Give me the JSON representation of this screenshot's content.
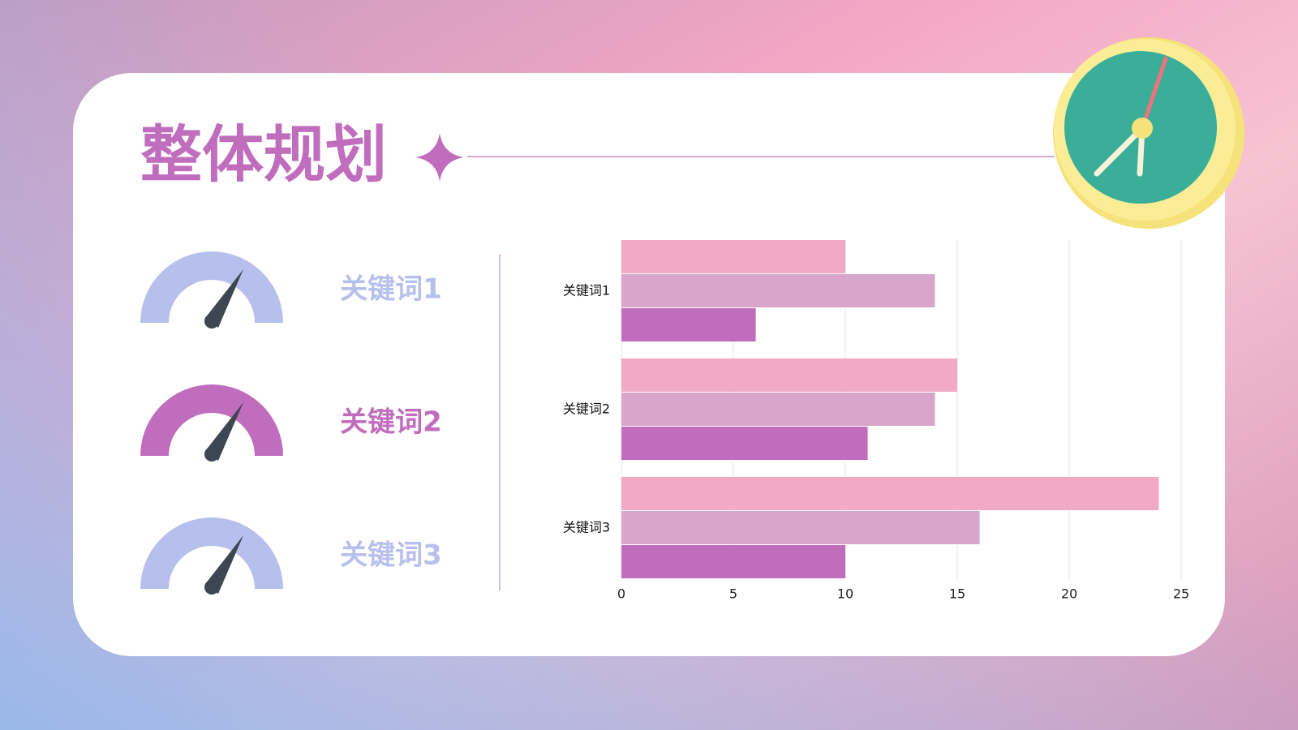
{
  "title": "整体规划",
  "keywords": [
    "关键词1",
    "关键词2",
    "关键词3"
  ],
  "chart_data": {
    "type": "bar",
    "orientation": "horizontal",
    "categories": [
      "关键词1",
      "关键词2",
      "关键词3"
    ],
    "series": [
      {
        "color": "#f1a9c6",
        "values": [
          10,
          15,
          24
        ]
      },
      {
        "color": "#d9a5ca",
        "values": [
          14,
          14,
          16
        ]
      },
      {
        "color": "#c16dbd",
        "values": [
          6,
          11,
          10
        ]
      }
    ],
    "xlim": [
      0,
      25
    ],
    "xticks": [
      0,
      5,
      10,
      15,
      20,
      25
    ],
    "grid": true
  }
}
